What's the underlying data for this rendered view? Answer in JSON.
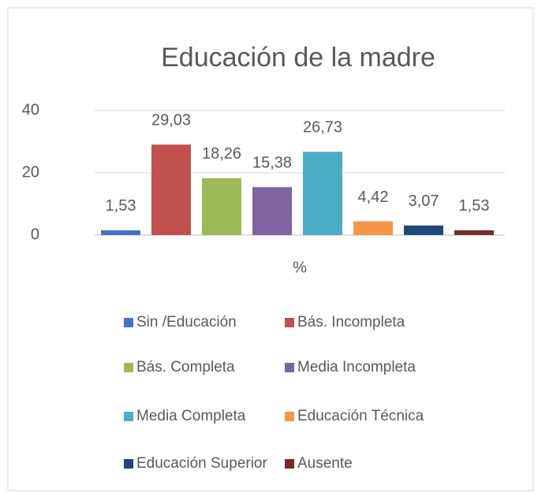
{
  "chart_data": {
    "type": "bar",
    "title": "Educación de la madre",
    "categories": [
      "%"
    ],
    "series": [
      {
        "name": "Sin /Educación",
        "color": "#4472c4",
        "values": [
          1.53
        ],
        "value_labels": [
          "1,53"
        ]
      },
      {
        "name": "Bás. Incompleta",
        "color": "#c0504d",
        "values": [
          29.03
        ],
        "value_labels": [
          "29,03"
        ]
      },
      {
        "name": "Bás. Completa",
        "color": "#9bbb59",
        "values": [
          18.26
        ],
        "value_labels": [
          "18,26"
        ]
      },
      {
        "name": "Media Incompleta",
        "color": "#8064a2",
        "values": [
          15.38
        ],
        "value_labels": [
          "15,38"
        ]
      },
      {
        "name": "Media Completa",
        "color": "#4bacc6",
        "values": [
          26.73
        ],
        "value_labels": [
          "26,73"
        ]
      },
      {
        "name": "Educación Técnica",
        "color": "#f79646",
        "values": [
          4.42
        ],
        "value_labels": [
          "4,42"
        ]
      },
      {
        "name": "Educación Superior",
        "color": "#1f497d",
        "values": [
          3.07
        ],
        "value_labels": [
          "3,07"
        ]
      },
      {
        "name": "Ausente",
        "color": "#772c2a",
        "values": [
          1.53
        ],
        "value_labels": [
          "1,53"
        ]
      }
    ],
    "ylim": [
      0,
      40
    ],
    "yticks": [
      0,
      20,
      40
    ],
    "grid": true,
    "legend": "bottom"
  }
}
